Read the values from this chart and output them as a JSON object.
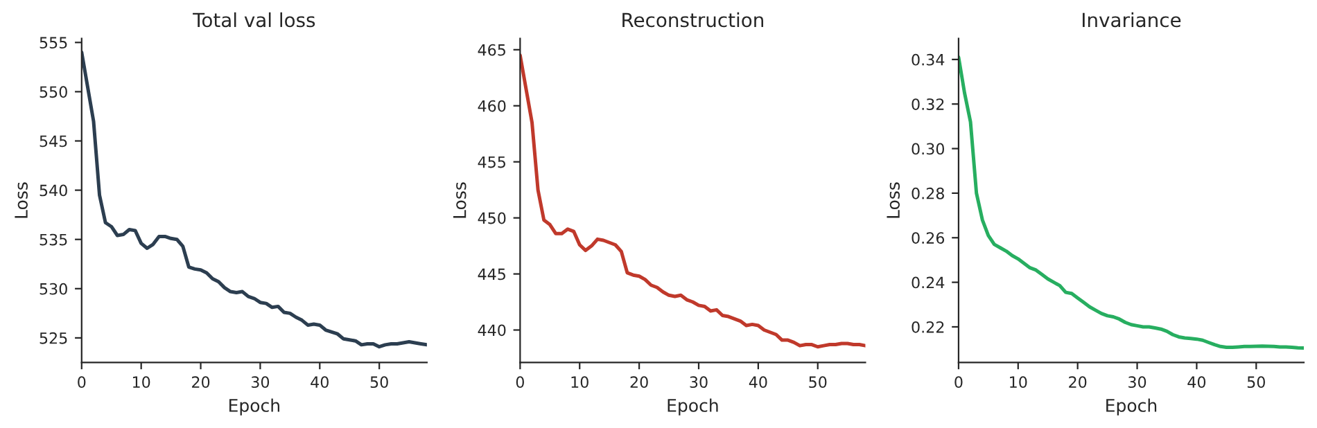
{
  "chart_data": [
    {
      "type": "line",
      "title": "Total val loss",
      "xlabel": "Epoch",
      "ylabel": "Loss",
      "x": [
        0,
        1,
        2,
        3,
        4,
        5,
        6,
        7,
        8,
        9,
        10,
        11,
        12,
        13,
        14,
        15,
        16,
        17,
        18,
        19,
        20,
        21,
        22,
        23,
        24,
        25,
        26,
        27,
        28,
        29,
        30,
        31,
        32,
        33,
        34,
        35,
        36,
        37,
        38,
        39,
        40,
        41,
        42,
        43,
        44,
        45,
        46,
        47,
        48,
        49,
        50,
        51,
        52,
        53,
        54,
        55,
        56,
        57,
        58
      ],
      "series": [
        {
          "color": "#2c3e50",
          "values": [
            554,
            550.5,
            547,
            539.5,
            536.7,
            536.3,
            535.4,
            535.5,
            536,
            535.9,
            534.6,
            534.1,
            534.5,
            535.3,
            535.3,
            535.1,
            535,
            534.3,
            532.2,
            532,
            531.9,
            531.6,
            531,
            530.7,
            530.1,
            529.7,
            529.6,
            529.7,
            529.2,
            529,
            528.6,
            528.5,
            528.1,
            528.2,
            527.6,
            527.5,
            527.1,
            526.8,
            526.3,
            526.4,
            526.3,
            525.8,
            525.6,
            525.4,
            524.9,
            524.8,
            524.7,
            524.3,
            524.4,
            524.4,
            524.1,
            524.3,
            524.4,
            524.4,
            524.5,
            524.6,
            524.5,
            524.4,
            524.3
          ]
        }
      ],
      "xlim": [
        0,
        58
      ],
      "xticks": [
        0,
        10,
        20,
        30,
        40,
        50
      ],
      "ylim": [
        522.5,
        555.4
      ],
      "yticks": [
        525,
        530,
        535,
        540,
        545,
        550,
        555
      ],
      "grid": false,
      "legend": false
    },
    {
      "type": "line",
      "title": "Reconstruction",
      "xlabel": "Epoch",
      "ylabel": "Loss",
      "x": [
        0,
        1,
        2,
        3,
        4,
        5,
        6,
        7,
        8,
        9,
        10,
        11,
        12,
        13,
        14,
        15,
        16,
        17,
        18,
        19,
        20,
        21,
        22,
        23,
        24,
        25,
        26,
        27,
        28,
        29,
        30,
        31,
        32,
        33,
        34,
        35,
        36,
        37,
        38,
        39,
        40,
        41,
        42,
        43,
        44,
        45,
        46,
        47,
        48,
        49,
        50,
        51,
        52,
        53,
        54,
        55,
        56,
        57,
        58
      ],
      "series": [
        {
          "color": "#c0392b",
          "values": [
            464.5,
            461.5,
            458.5,
            452.5,
            449.8,
            449.4,
            448.6,
            448.6,
            449,
            448.8,
            447.6,
            447.1,
            447.5,
            448.1,
            448,
            447.8,
            447.6,
            447,
            445.1,
            444.9,
            444.8,
            444.5,
            444,
            443.8,
            443.4,
            443.1,
            443,
            443.1,
            442.7,
            442.5,
            442.2,
            442.1,
            441.7,
            441.8,
            441.3,
            441.2,
            441,
            440.8,
            440.4,
            440.5,
            440.4,
            440,
            439.8,
            439.6,
            439.1,
            439.1,
            438.9,
            438.6,
            438.7,
            438.7,
            438.5,
            438.6,
            438.7,
            438.7,
            438.8,
            438.8,
            438.7,
            438.7,
            438.6
          ]
        }
      ],
      "xlim": [
        0,
        58
      ],
      "xticks": [
        0,
        10,
        20,
        30,
        40,
        50
      ],
      "ylim": [
        437.1,
        466
      ],
      "yticks": [
        440,
        445,
        450,
        455,
        460,
        465
      ],
      "grid": false,
      "legend": false
    },
    {
      "type": "line",
      "title": "Invariance",
      "xlabel": "Epoch",
      "ylabel": "Loss",
      "x": [
        0,
        1,
        2,
        3,
        4,
        5,
        6,
        7,
        8,
        9,
        10,
        11,
        12,
        13,
        14,
        15,
        16,
        17,
        18,
        19,
        20,
        21,
        22,
        23,
        24,
        25,
        26,
        27,
        28,
        29,
        30,
        31,
        32,
        33,
        34,
        35,
        36,
        37,
        38,
        39,
        40,
        41,
        42,
        43,
        44,
        45,
        46,
        47,
        48,
        49,
        50,
        51,
        52,
        53,
        54,
        55,
        56,
        57,
        58
      ],
      "series": [
        {
          "color": "#27ae60",
          "values": [
            0.341,
            0.325,
            0.312,
            0.28,
            0.268,
            0.261,
            0.257,
            0.2555,
            0.254,
            0.252,
            0.2505,
            0.2485,
            0.2465,
            0.2455,
            0.2435,
            0.2415,
            0.24,
            0.2385,
            0.2355,
            0.235,
            0.233,
            0.231,
            0.229,
            0.2275,
            0.226,
            0.225,
            0.2245,
            0.2235,
            0.222,
            0.221,
            0.2205,
            0.22,
            0.22,
            0.2195,
            0.219,
            0.218,
            0.2165,
            0.2155,
            0.215,
            0.2148,
            0.2145,
            0.214,
            0.213,
            0.212,
            0.2112,
            0.2108,
            0.2108,
            0.211,
            0.2112,
            0.2112,
            0.2113,
            0.2114,
            0.2113,
            0.2112,
            0.211,
            0.211,
            0.2108,
            0.2106,
            0.2105
          ]
        }
      ],
      "xlim": [
        0,
        58
      ],
      "xticks": [
        0,
        10,
        20,
        30,
        40,
        50
      ],
      "ylim": [
        0.204,
        0.3494
      ],
      "yticks": [
        {
          "value": 0.22,
          "label": "0.22"
        },
        {
          "value": 0.24,
          "label": "0.24"
        },
        {
          "value": 0.26,
          "label": "0.26"
        },
        {
          "value": 0.28,
          "label": "0.28"
        },
        {
          "value": 0.3,
          "label": "0.30"
        },
        {
          "value": 0.32,
          "label": "0.32"
        },
        {
          "value": 0.34,
          "label": "0.34"
        }
      ],
      "grid": false,
      "legend": false
    }
  ]
}
